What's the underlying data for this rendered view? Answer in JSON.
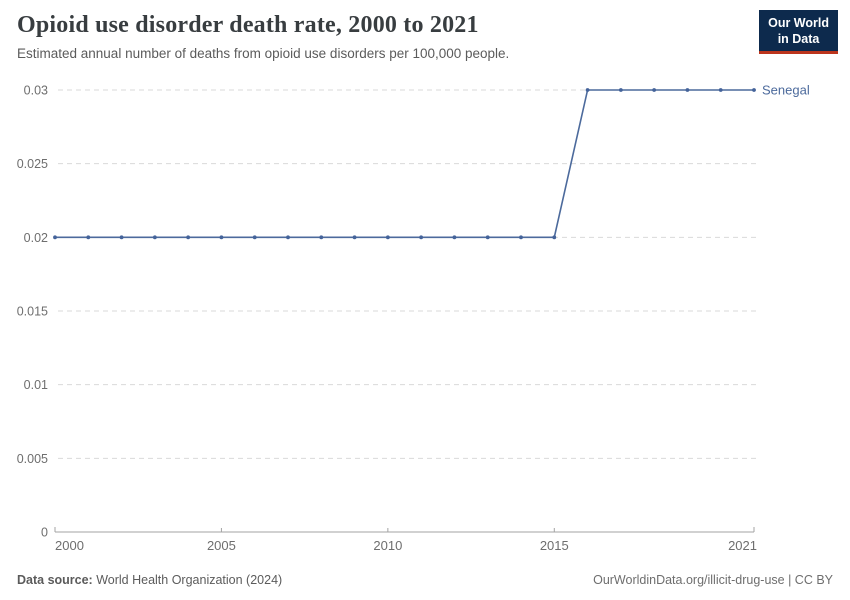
{
  "header": {
    "title": "Opioid use disorder death rate, 2000 to 2021",
    "subtitle": "Estimated annual number of deaths from opioid use disorders per 100,000 people."
  },
  "logo": {
    "line1": "Our World",
    "line2": "in Data",
    "bg_color": "#0d2a4d",
    "accent_color": "#bc351d"
  },
  "chart_data": {
    "type": "line",
    "title": "Opioid use disorder death rate, 2000 to 2021",
    "xlabel": "",
    "ylabel": "",
    "xlim": [
      2000,
      2021
    ],
    "ylim": [
      0,
      0.03
    ],
    "grid": "horizontal-dashed",
    "legend_position": "end-of-line-label",
    "x_ticks": [
      2000,
      2005,
      2010,
      2015,
      2021
    ],
    "y_ticks": [
      0,
      0.005,
      0.01,
      0.015,
      0.02,
      0.025,
      0.03
    ],
    "y_tick_labels": [
      "0",
      "0.005",
      "0.01",
      "0.015",
      "0.02",
      "0.025",
      "0.03"
    ],
    "series": [
      {
        "name": "Senegal",
        "x": [
          2000,
          2001,
          2002,
          2003,
          2004,
          2005,
          2006,
          2007,
          2008,
          2009,
          2010,
          2011,
          2012,
          2013,
          2014,
          2015,
          2016,
          2017,
          2018,
          2019,
          2020,
          2021
        ],
        "values": [
          0.02,
          0.02,
          0.02,
          0.02,
          0.02,
          0.02,
          0.02,
          0.02,
          0.02,
          0.02,
          0.02,
          0.02,
          0.02,
          0.02,
          0.02,
          0.02,
          0.03,
          0.03,
          0.03,
          0.03,
          0.03,
          0.03
        ]
      }
    ],
    "colors": {
      "line": "#4c6a9c",
      "marker": "#44639a",
      "series_label": "#4c6a9c",
      "grid": "#dadada",
      "axis": "#a3a3a3",
      "tick_text": "#6e6e6e"
    }
  },
  "footer": {
    "source_label": "Data source:",
    "source_value": " World Health Organization (2024)",
    "rights": "OurWorldinData.org/illicit-drug-use | CC BY"
  }
}
